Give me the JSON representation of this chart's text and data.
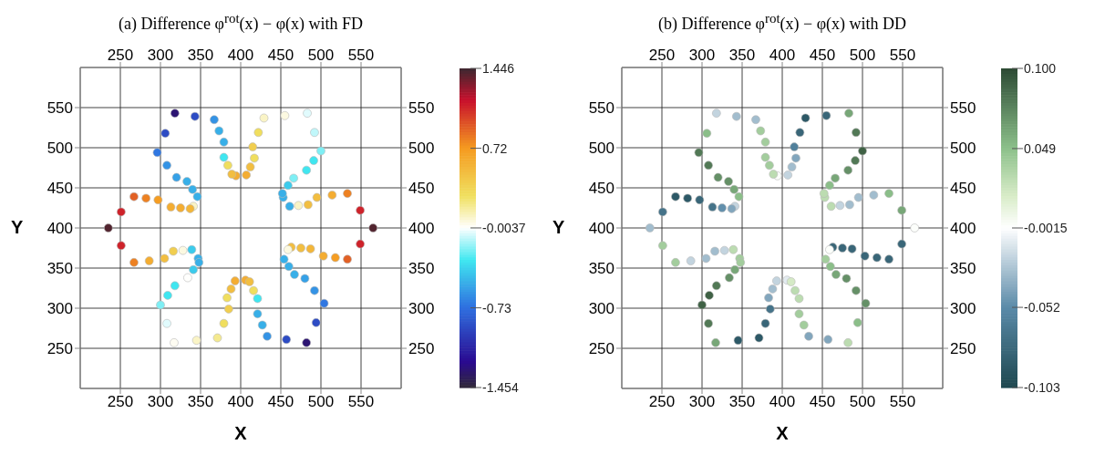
{
  "chart_data": [
    {
      "type": "scatter",
      "title": "(a) Difference φ$^{rot}$(x) − φ(x) with FD",
      "xlabel": "X",
      "ylabel": "Y",
      "xlim": [
        200,
        600
      ],
      "xticks": [
        250,
        300,
        350,
        400,
        450,
        500,
        550
      ],
      "x2lim": [
        200,
        600
      ],
      "x2ticks": [
        250,
        300,
        350,
        400,
        450,
        500,
        550
      ],
      "ylim": [
        200,
        600
      ],
      "yticks": [
        250,
        300,
        350,
        400,
        450,
        500,
        550
      ],
      "y2lim": [
        200,
        600
      ],
      "y2ticks": [
        250,
        300,
        350,
        400,
        450,
        500,
        550
      ],
      "grid": true,
      "marker": "circle",
      "clim": [
        -1.454,
        1.446
      ],
      "cticks": [
        -1.454,
        -0.73,
        -0.0037,
        0.72,
        1.446
      ],
      "x": [
        463,
        475,
        487,
        503,
        518,
        533,
        549,
        565,
        549,
        533,
        514,
        495,
        484,
        472,
        461,
        453,
        452,
        459,
        466,
        482,
        491,
        500,
        492,
        483,
        455,
        429,
        422,
        415,
        417,
        412,
        407,
        394,
        389,
        384,
        379,
        379,
        373,
        367,
        343,
        318,
        306,
        296,
        308,
        320,
        333,
        340,
        346,
        341,
        337,
        325,
        313,
        297,
        282,
        267,
        251,
        235,
        251,
        267,
        286,
        305,
        316,
        328,
        339,
        347,
        348,
        341,
        334,
        318,
        309,
        300,
        308,
        317,
        345,
        371,
        379,
        385,
        383,
        388,
        393,
        406,
        411,
        416,
        421,
        421,
        427,
        433,
        457,
        482,
        494,
        504,
        492,
        480,
        467,
        460,
        454,
        459
      ],
      "values": [
        376,
        375,
        374,
        365,
        363,
        361,
        380,
        400,
        422,
        443,
        441,
        438,
        429,
        428,
        427,
        438,
        443,
        453,
        462,
        472,
        484,
        496,
        519,
        543,
        540,
        537,
        519,
        501,
        487,
        476,
        466,
        465,
        467,
        478,
        488,
        507,
        521,
        535,
        539,
        543,
        518,
        494,
        478,
        463,
        458,
        448,
        439,
        427,
        424,
        425,
        426,
        435,
        437,
        439,
        420,
        400,
        378,
        357,
        359,
        362,
        371,
        372,
        373,
        362,
        357,
        348,
        338,
        328,
        316,
        304,
        281,
        257,
        260,
        263,
        281,
        299,
        313,
        324,
        334,
        335,
        333,
        322,
        312,
        293,
        279,
        265,
        261,
        257,
        282,
        306,
        322,
        337,
        342,
        352,
        361,
        373
      ],
      "cvalues": [
        0.5,
        0.5,
        0.55,
        0.6,
        0.7,
        0.9,
        1.1,
        1.4,
        1.1,
        0.8,
        0.6,
        0.5,
        0.5,
        0.1,
        -0.5,
        -0.5,
        -0.5,
        -0.4,
        -0.2,
        -0.3,
        -0.3,
        -0.2,
        -0.1,
        -0.05,
        0.05,
        0.1,
        0.3,
        0.4,
        0.3,
        0.5,
        0.6,
        0.6,
        0.5,
        0.3,
        -0.3,
        -0.5,
        -0.5,
        -0.6,
        -0.9,
        -1.3,
        -0.9,
        -0.7,
        -0.6,
        -0.55,
        -0.5,
        -0.5,
        -0.5,
        0.1,
        0.55,
        0.6,
        0.6,
        0.7,
        0.8,
        0.9,
        1.1,
        1.4,
        1.1,
        0.8,
        0.6,
        0.5,
        0.4,
        0.05,
        -0.4,
        -0.5,
        -0.5,
        -0.4,
        0.0,
        -0.3,
        -0.3,
        -0.2,
        -0.05,
        0.02,
        0.1,
        0.2,
        0.3,
        0.4,
        0.3,
        0.5,
        0.6,
        0.6,
        0.5,
        0.3,
        -0.3,
        -0.5,
        -0.5,
        -0.6,
        -0.9,
        -1.3,
        -0.9,
        -0.7,
        -0.6,
        -0.55,
        -0.5,
        -0.5,
        -0.5,
        0.05
      ]
    },
    {
      "type": "scatter",
      "title": "(b) Difference φ$^{rot}$(x) − φ(x) with DD",
      "xlabel": "X",
      "ylabel": "Y",
      "xlim": [
        200,
        600
      ],
      "xticks": [
        250,
        300,
        350,
        400,
        450,
        500,
        550
      ],
      "x2lim": [
        200,
        600
      ],
      "x2ticks": [
        250,
        300,
        350,
        400,
        450,
        500,
        550
      ],
      "ylim": [
        200,
        600
      ],
      "yticks": [
        250,
        300,
        350,
        400,
        450,
        500,
        550
      ],
      "y2lim": [
        200,
        600
      ],
      "y2ticks": [
        250,
        300,
        350,
        400,
        450,
        500,
        550
      ],
      "grid": true,
      "marker": "circle",
      "clim": [
        -0.103,
        0.1
      ],
      "cticks": [
        -0.103,
        -0.052,
        -0.0015,
        0.049,
        {
          "value": 0.1,
          "label": "0.100"
        }
      ],
      "x": [
        463,
        475,
        487,
        503,
        518,
        533,
        549,
        565,
        549,
        533,
        514,
        495,
        484,
        472,
        461,
        453,
        452,
        459,
        466,
        482,
        491,
        500,
        492,
        483,
        455,
        429,
        422,
        415,
        417,
        412,
        407,
        394,
        389,
        384,
        379,
        379,
        373,
        367,
        343,
        318,
        306,
        296,
        308,
        320,
        333,
        340,
        346,
        341,
        337,
        325,
        313,
        297,
        282,
        267,
        251,
        235,
        251,
        267,
        286,
        305,
        316,
        328,
        339,
        347,
        348,
        341,
        334,
        318,
        309,
        300,
        308,
        317,
        345,
        371,
        379,
        385,
        383,
        388,
        393,
        406,
        411,
        416,
        421,
        421,
        427,
        433,
        457,
        482,
        494,
        504,
        492,
        480,
        467,
        460,
        454,
        459
      ],
      "values": [
        376,
        375,
        374,
        365,
        363,
        361,
        380,
        400,
        422,
        443,
        441,
        438,
        429,
        428,
        427,
        438,
        443,
        453,
        462,
        472,
        484,
        496,
        519,
        543,
        540,
        537,
        519,
        501,
        487,
        476,
        466,
        465,
        467,
        478,
        488,
        507,
        521,
        535,
        539,
        543,
        518,
        494,
        478,
        463,
        458,
        448,
        439,
        427,
        424,
        425,
        426,
        435,
        437,
        439,
        420,
        400,
        378,
        357,
        359,
        362,
        371,
        372,
        373,
        362,
        357,
        348,
        338,
        328,
        316,
        304,
        281,
        257,
        260,
        263,
        281,
        299,
        313,
        324,
        334,
        335,
        333,
        322,
        312,
        293,
        279,
        265,
        261,
        257,
        282,
        306,
        322,
        337,
        342,
        352,
        361,
        373
      ],
      "cvalues": [
        -0.08,
        -0.08,
        -0.08,
        -0.08,
        -0.08,
        -0.08,
        -0.08,
        0.0,
        0.06,
        0.05,
        -0.03,
        -0.03,
        -0.03,
        -0.02,
        0.03,
        0.03,
        0.03,
        0.05,
        0.06,
        0.07,
        0.08,
        0.09,
        0.08,
        0.06,
        -0.08,
        -0.09,
        -0.08,
        -0.06,
        -0.04,
        -0.03,
        -0.02,
        0.0,
        0.03,
        0.04,
        0.04,
        0.04,
        0.04,
        -0.03,
        -0.03,
        -0.02,
        0.05,
        0.08,
        0.08,
        0.07,
        0.07,
        0.06,
        0.05,
        -0.02,
        -0.04,
        -0.05,
        -0.07,
        -0.08,
        -0.09,
        -0.09,
        -0.07,
        -0.03,
        0.04,
        0.04,
        -0.02,
        -0.03,
        -0.03,
        -0.02,
        0.03,
        0.04,
        0.04,
        0.06,
        0.07,
        0.08,
        0.09,
        0.09,
        0.08,
        0.06,
        -0.09,
        -0.09,
        -0.08,
        -0.07,
        -0.04,
        -0.03,
        -0.02,
        -0.01,
        0.02,
        0.03,
        0.03,
        0.04,
        0.04,
        -0.04,
        -0.04,
        0.03,
        0.05,
        0.07,
        0.07,
        0.07,
        0.06,
        0.05,
        0.04,
        0.0
      ]
    }
  ]
}
